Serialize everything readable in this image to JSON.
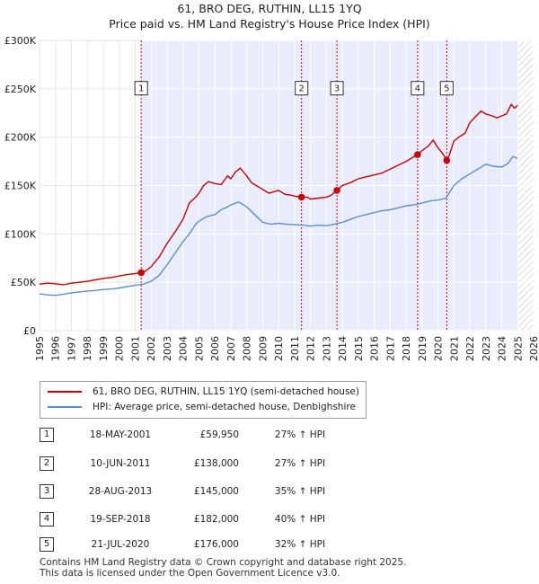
{
  "chart_data": {
    "type": "line",
    "title": "61, BRO DEG, RUTHIN, LL15 1YQ",
    "subtitle": "Price paid vs. HM Land Registry's House Price Index (HPI)",
    "xlim": [
      1995,
      2026
    ],
    "ylim": [
      0,
      300000
    ],
    "y_ticks": [
      0,
      50000,
      100000,
      150000,
      200000,
      250000,
      300000
    ],
    "y_tick_labels": [
      "£0",
      "£50K",
      "£100K",
      "£150K",
      "£200K",
      "£250K",
      "£300K"
    ],
    "x_ticks": [
      1995,
      1996,
      1997,
      1998,
      1999,
      2000,
      2001,
      2002,
      2003,
      2004,
      2005,
      2006,
      2007,
      2008,
      2009,
      2010,
      2011,
      2012,
      2013,
      2014,
      2015,
      2016,
      2017,
      2018,
      2019,
      2020,
      2021,
      2022,
      2023,
      2024,
      2025,
      2026
    ],
    "shaded_region": [
      2001.38,
      2025.0
    ],
    "hatched_region": [
      2025.0,
      2026
    ],
    "series": [
      {
        "name": "61, BRO DEG, RUTHIN, LL15 1YQ (semi-detached house)",
        "color": "#cc0000",
        "points": [
          [
            1995,
            48000
          ],
          [
            1995.5,
            49000
          ],
          [
            1996,
            48500
          ],
          [
            1996.5,
            47500
          ],
          [
            1997,
            49000
          ],
          [
            1997.5,
            50000
          ],
          [
            1998,
            51000
          ],
          [
            1998.5,
            52500
          ],
          [
            1999,
            54000
          ],
          [
            1999.5,
            55000
          ],
          [
            2000,
            56500
          ],
          [
            2000.5,
            58000
          ],
          [
            2001,
            59000
          ],
          [
            2001.38,
            59950
          ],
          [
            2001.6,
            61000
          ],
          [
            2002,
            66000
          ],
          [
            2002.5,
            76000
          ],
          [
            2003,
            90000
          ],
          [
            2003.5,
            102000
          ],
          [
            2004,
            115000
          ],
          [
            2004.4,
            132000
          ],
          [
            2004.8,
            138000
          ],
          [
            2005,
            142000
          ],
          [
            2005.3,
            150000
          ],
          [
            2005.6,
            154000
          ],
          [
            2006,
            152000
          ],
          [
            2006.4,
            151000
          ],
          [
            2006.8,
            160000
          ],
          [
            2007,
            157000
          ],
          [
            2007.3,
            164000
          ],
          [
            2007.6,
            168000
          ],
          [
            2008,
            160000
          ],
          [
            2008.3,
            153000
          ],
          [
            2008.7,
            149000
          ],
          [
            2009,
            146000
          ],
          [
            2009.4,
            142000
          ],
          [
            2009.8,
            144000
          ],
          [
            2010,
            145000
          ],
          [
            2010.4,
            141000
          ],
          [
            2010.8,
            140000
          ],
          [
            2011,
            139000
          ],
          [
            2011.44,
            138000
          ],
          [
            2011.8,
            138000
          ],
          [
            2012,
            136000
          ],
          [
            2012.5,
            137000
          ],
          [
            2013,
            138000
          ],
          [
            2013.3,
            140000
          ],
          [
            2013.66,
            145000
          ],
          [
            2014,
            150000
          ],
          [
            2014.5,
            153000
          ],
          [
            2015,
            157000
          ],
          [
            2015.5,
            159000
          ],
          [
            2016,
            161000
          ],
          [
            2016.5,
            163000
          ],
          [
            2017,
            167000
          ],
          [
            2017.5,
            171000
          ],
          [
            2018,
            175000
          ],
          [
            2018.72,
            182000
          ],
          [
            2019,
            186000
          ],
          [
            2019.4,
            191000
          ],
          [
            2019.7,
            197000
          ],
          [
            2020,
            189000
          ],
          [
            2020.3,
            183000
          ],
          [
            2020.55,
            176000
          ],
          [
            2020.7,
            181000
          ],
          [
            2021,
            196000
          ],
          [
            2021.3,
            200000
          ],
          [
            2021.7,
            204000
          ],
          [
            2022,
            215000
          ],
          [
            2022.4,
            222000
          ],
          [
            2022.7,
            227000
          ],
          [
            2023,
            224000
          ],
          [
            2023.4,
            222000
          ],
          [
            2023.7,
            220000
          ],
          [
            2024,
            222000
          ],
          [
            2024.3,
            224000
          ],
          [
            2024.6,
            234000
          ],
          [
            2024.8,
            230000
          ],
          [
            2025,
            233000
          ]
        ]
      },
      {
        "name": "HPI: Average price, semi-detached house, Denbighshire",
        "color": "#5b8fd0",
        "points": [
          [
            1995,
            38000
          ],
          [
            1995.5,
            37000
          ],
          [
            1996,
            36500
          ],
          [
            1996.5,
            37500
          ],
          [
            1997,
            39000
          ],
          [
            1997.5,
            40000
          ],
          [
            1998,
            41000
          ],
          [
            1998.5,
            41500
          ],
          [
            1999,
            42500
          ],
          [
            1999.5,
            43000
          ],
          [
            2000,
            44000
          ],
          [
            2000.5,
            45500
          ],
          [
            2001,
            47000
          ],
          [
            2001.5,
            48000
          ],
          [
            2002,
            51000
          ],
          [
            2002.5,
            57000
          ],
          [
            2003,
            68000
          ],
          [
            2003.5,
            80000
          ],
          [
            2004,
            92000
          ],
          [
            2004.4,
            100000
          ],
          [
            2004.8,
            110000
          ],
          [
            2005,
            113000
          ],
          [
            2005.5,
            118000
          ],
          [
            2006,
            120000
          ],
          [
            2006.4,
            125000
          ],
          [
            2006.8,
            128000
          ],
          [
            2007,
            130000
          ],
          [
            2007.5,
            133000
          ],
          [
            2008,
            128000
          ],
          [
            2008.5,
            120000
          ],
          [
            2009,
            112000
          ],
          [
            2009.5,
            110000
          ],
          [
            2010,
            111000
          ],
          [
            2010.5,
            110000
          ],
          [
            2011,
            109500
          ],
          [
            2011.5,
            109000
          ],
          [
            2012,
            108000
          ],
          [
            2012.5,
            109000
          ],
          [
            2013,
            108500
          ],
          [
            2013.5,
            110000
          ],
          [
            2014,
            112000
          ],
          [
            2014.5,
            115000
          ],
          [
            2015,
            118000
          ],
          [
            2015.5,
            120000
          ],
          [
            2016,
            122000
          ],
          [
            2016.5,
            124000
          ],
          [
            2017,
            125000
          ],
          [
            2017.5,
            127000
          ],
          [
            2018,
            129000
          ],
          [
            2018.5,
            130000
          ],
          [
            2019,
            132000
          ],
          [
            2019.5,
            134000
          ],
          [
            2020,
            135000
          ],
          [
            2020.5,
            137000
          ],
          [
            2021,
            150000
          ],
          [
            2021.5,
            157000
          ],
          [
            2022,
            162000
          ],
          [
            2022.5,
            167000
          ],
          [
            2023,
            172000
          ],
          [
            2023.5,
            170000
          ],
          [
            2024,
            169000
          ],
          [
            2024.4,
            173000
          ],
          [
            2024.7,
            180000
          ],
          [
            2025,
            178000
          ]
        ]
      }
    ],
    "transactions": [
      {
        "id": "1",
        "date": "18-MAY-2001",
        "price": "£59,950",
        "hpi": "27% ↑ HPI",
        "x": 2001.38,
        "y": 59950
      },
      {
        "id": "2",
        "date": "10-JUN-2011",
        "price": "£138,000",
        "hpi": "27% ↑ HPI",
        "x": 2011.44,
        "y": 138000
      },
      {
        "id": "3",
        "date": "28-AUG-2013",
        "price": "£145,000",
        "hpi": "35% ↑ HPI",
        "x": 2013.66,
        "y": 145000
      },
      {
        "id": "4",
        "date": "19-SEP-2018",
        "price": "£182,000",
        "hpi": "40% ↑ HPI",
        "x": 2018.72,
        "y": 182000
      },
      {
        "id": "5",
        "date": "21-JUL-2020",
        "price": "£176,000",
        "hpi": "32% ↑ HPI",
        "x": 2020.55,
        "y": 176000
      }
    ],
    "marker_label_y": 252000
  },
  "legend": {
    "property": "61, BRO DEG, RUTHIN, LL15 1YQ (semi-detached house)",
    "hpi": "HPI: Average price, semi-detached house, Denbighshire"
  },
  "footer": {
    "line1": "Contains HM Land Registry data © Crown copyright and database right 2025.",
    "line2": "This data is licensed under the Open Government Licence v3.0."
  },
  "colors": {
    "property": "#cc0000",
    "hpi": "#5b8fd0",
    "shade": "#e8ecfb"
  }
}
